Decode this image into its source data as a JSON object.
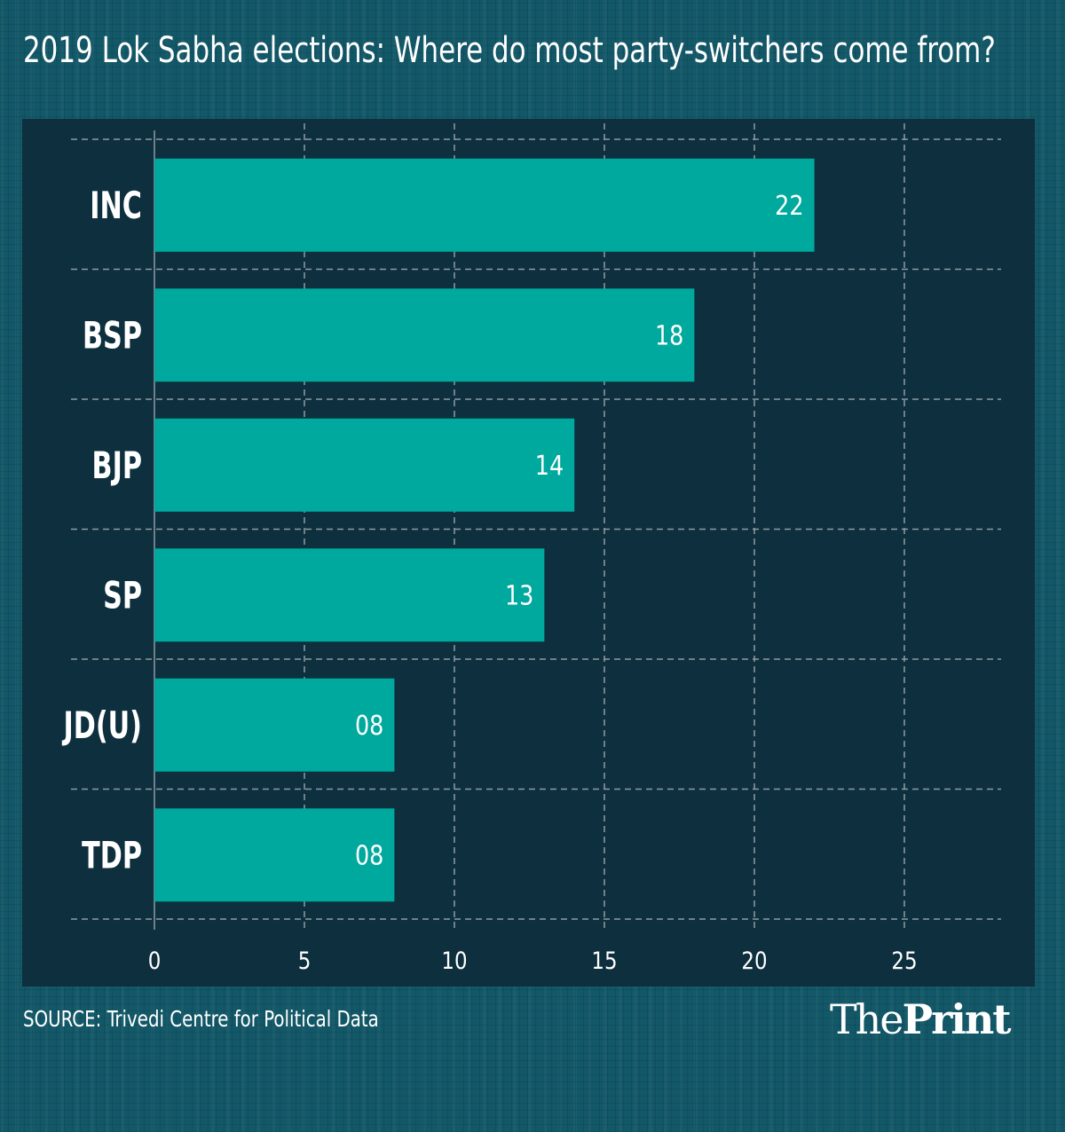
{
  "header": {
    "title": "2019 Lok Sabha elections: Where do most party-switchers come from?"
  },
  "footer": {
    "source": "SOURCE: Trivedi Centre for Political Data",
    "logo_light": "The",
    "logo_bold": "Print"
  },
  "colors": {
    "background": "#135868",
    "panel": "#0d2f3e",
    "bar": "#00a99d",
    "grid": "#8f9ba3",
    "text": "#ffffff"
  },
  "chart_data": {
    "type": "bar",
    "orientation": "horizontal",
    "title": "2019 Lok Sabha elections: Where do most party-switchers come from?",
    "xlabel": "",
    "ylabel": "",
    "categories": [
      "INC",
      "BSP",
      "BJP",
      "SP",
      "JD(U)",
      "TDP"
    ],
    "values": [
      22,
      18,
      14,
      13,
      8,
      8
    ],
    "data_labels": [
      "22",
      "18",
      "14",
      "13",
      "08",
      "08"
    ],
    "xlim": [
      0,
      28
    ],
    "xticks": [
      0,
      5,
      10,
      15,
      20,
      25
    ],
    "xtick_labels": [
      "0",
      "5",
      "10",
      "15",
      "20",
      "25"
    ],
    "grid": true,
    "grid_style": "dashed",
    "legend": "none",
    "source": "Trivedi Centre for Political Data"
  }
}
